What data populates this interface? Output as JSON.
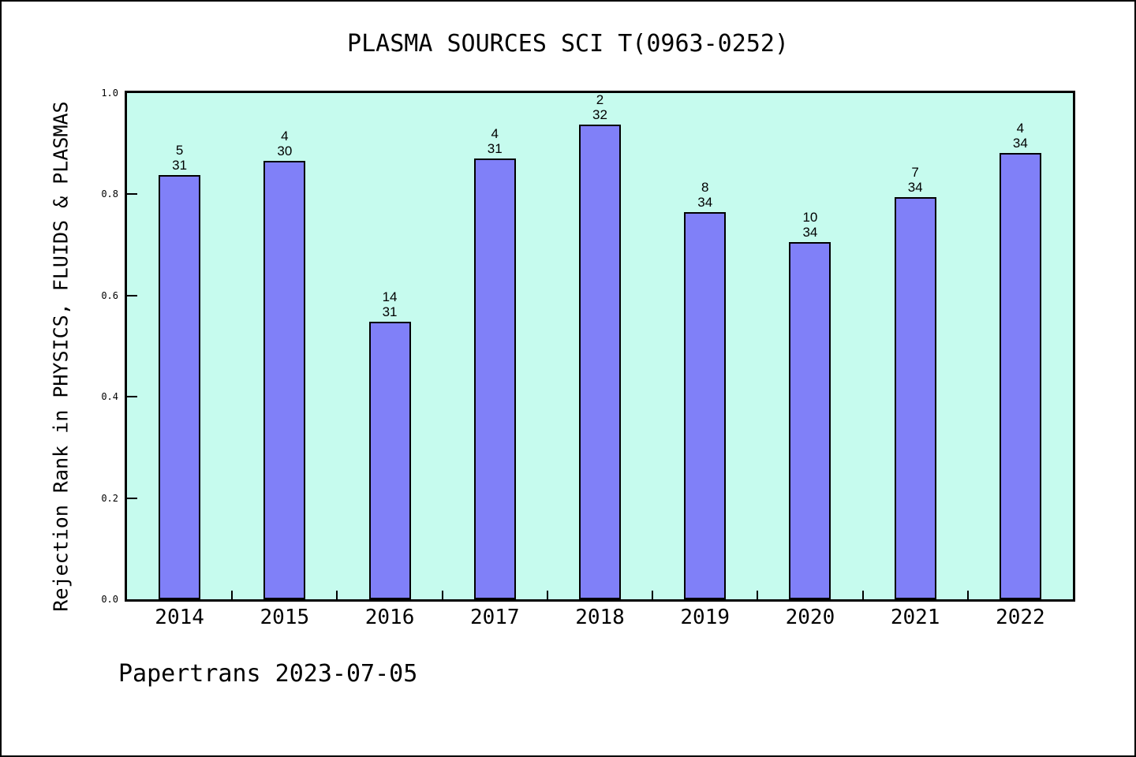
{
  "title": "PLASMA SOURCES SCI T(0963-0252)",
  "y_axis_label": "Rejection Rank in PHYSICS, FLUIDS & PLASMAS",
  "footer": "Papertrans 2023-07-05",
  "colors": {
    "bar_fill": "#8080f8",
    "bar_border": "#000000",
    "plot_bg": "#c6fbee",
    "page_bg": "#ffffff",
    "text": "#000000"
  },
  "chart_data": {
    "type": "bar",
    "title": "PLASMA SOURCES SCI T(0963-0252)",
    "ylabel": "Rejection Rank in PHYSICS, FLUIDS & PLASMAS",
    "xlabel": "",
    "categories": [
      "2014",
      "2015",
      "2016",
      "2017",
      "2018",
      "2019",
      "2020",
      "2021",
      "2022"
    ],
    "ranks": [
      5,
      4,
      14,
      4,
      2,
      8,
      10,
      7,
      4
    ],
    "totals": [
      31,
      30,
      31,
      31,
      32,
      34,
      34,
      34,
      34
    ],
    "values": [
      0.8387,
      0.8667,
      0.5484,
      0.871,
      0.9375,
      0.7647,
      0.7059,
      0.7941,
      0.8824
    ],
    "ylim": [
      0.0,
      1.0
    ],
    "ytick_values": [
      0.0,
      0.2,
      0.4,
      0.6,
      0.8,
      1.0
    ],
    "ytick_labels": [
      "0.0",
      "0.2",
      "0.4",
      "0.6",
      "0.8",
      "1.0"
    ],
    "grid": false,
    "legend_position": "none",
    "annotation": "Papertrans 2023-07-05"
  }
}
